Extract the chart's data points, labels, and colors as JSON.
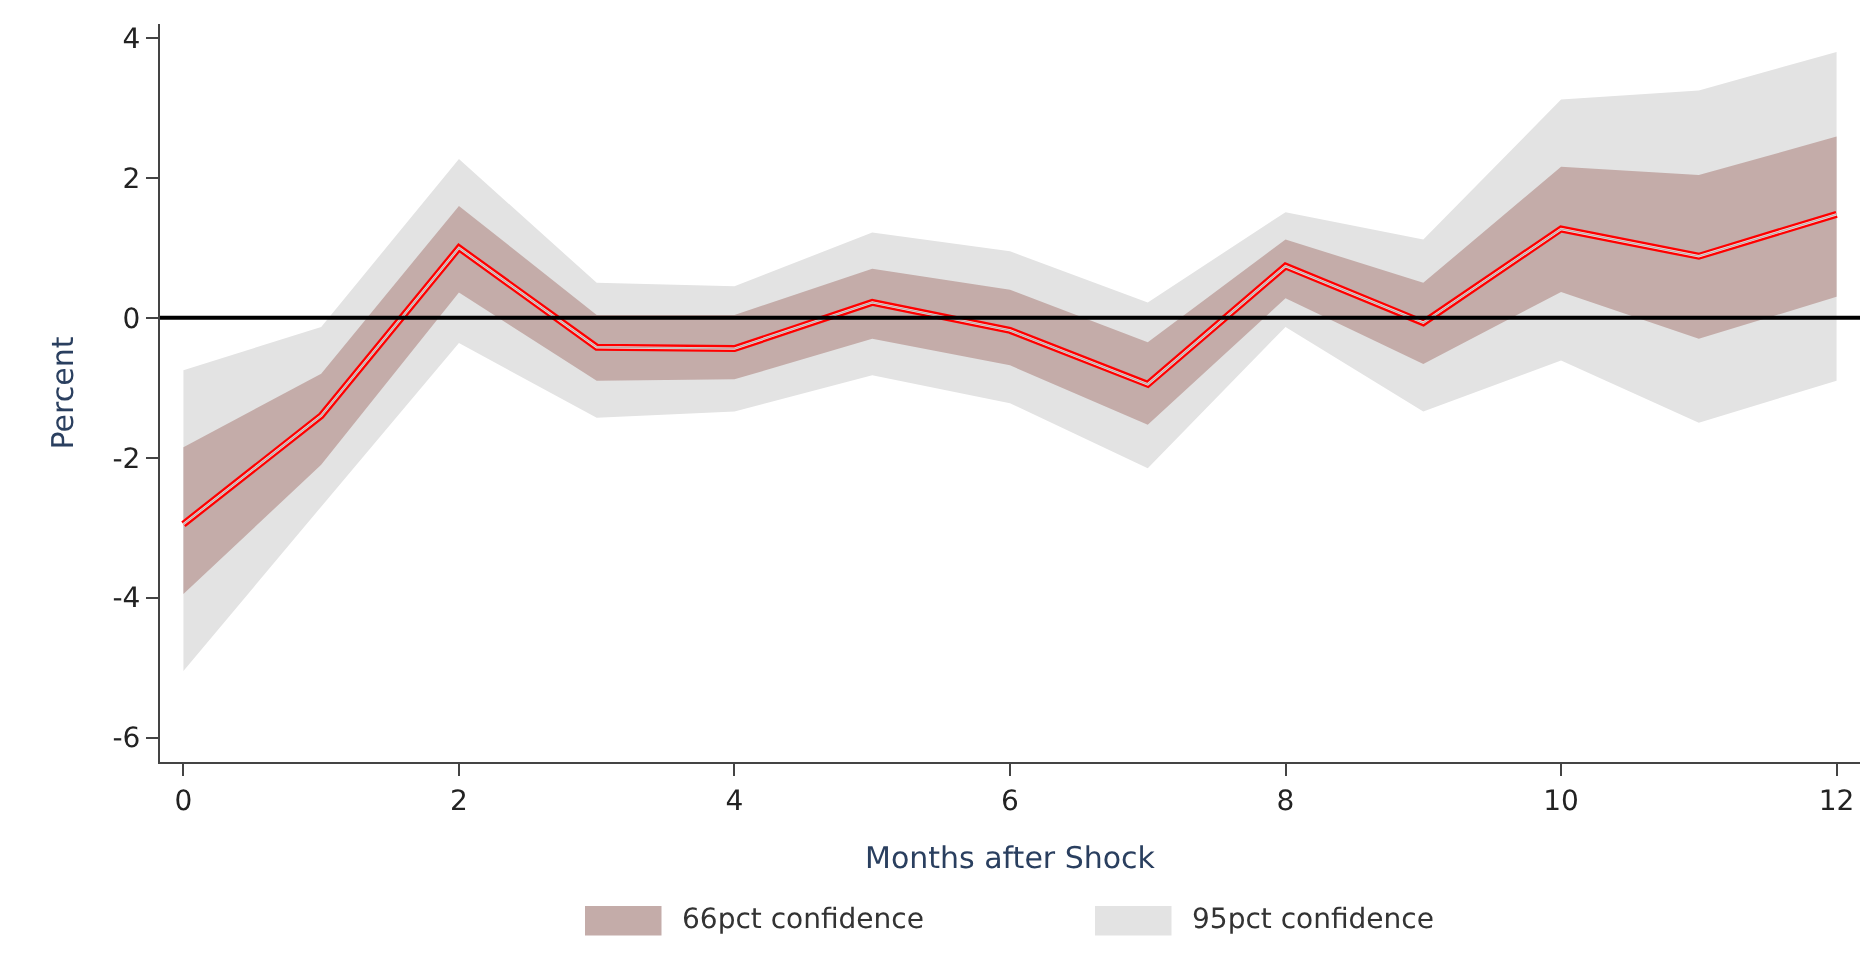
{
  "chart_data": {
    "type": "line",
    "xlabel": "Months after Shock",
    "ylabel": "Percent",
    "x": [
      0,
      1,
      2,
      3,
      4,
      5,
      6,
      7,
      8,
      9,
      10,
      11,
      12
    ],
    "series": [
      {
        "type": "line",
        "name": "95pct confidence",
        "color": "#e3e3e3",
        "values": [
          -2.95,
          -1.4,
          1.0,
          -0.42,
          -0.44,
          0.22,
          -0.18,
          -0.95,
          0.74,
          -0.07,
          1.27,
          0.88,
          1.48
        ],
        "lower": [
          -5.05,
          -2.7,
          -0.36,
          -1.43,
          -1.34,
          -0.82,
          -1.22,
          -2.15,
          -0.13,
          -1.34,
          -0.61,
          -1.5,
          -0.9
        ],
        "upper": [
          -0.75,
          -0.13,
          2.27,
          0.5,
          0.45,
          1.22,
          0.95,
          0.22,
          1.51,
          1.12,
          3.12,
          3.25,
          3.8
        ]
      },
      {
        "type": "line",
        "name": "66pct confidence",
        "color": "#c4aca9",
        "values": [
          -2.95,
          -1.4,
          1.0,
          -0.42,
          -0.44,
          0.22,
          -0.18,
          -0.95,
          0.74,
          -0.07,
          1.27,
          0.88,
          1.48
        ],
        "lower": [
          -3.95,
          -2.1,
          0.36,
          -0.9,
          -0.88,
          -0.3,
          -0.68,
          -1.53,
          0.28,
          -0.66,
          0.37,
          -0.3,
          0.3
        ],
        "upper": [
          -1.85,
          -0.8,
          1.6,
          0.04,
          0.04,
          0.7,
          0.4,
          -0.35,
          1.12,
          0.5,
          2.16,
          2.04,
          2.59
        ]
      },
      {
        "color": "#ff0000",
        "values": [
          -2.95,
          -1.4,
          1.0,
          -0.42,
          -0.44,
          0.22,
          -0.18,
          -0.95,
          0.74,
          -0.07,
          1.27,
          0.88,
          1.48
        ]
      }
    ],
    "ref_lines": [
      {
        "axis": "y",
        "value": 0,
        "color": "#000000"
      }
    ],
    "xlim": [
      -0.17,
      12.17
    ],
    "xticks": [
      0,
      2,
      4,
      6,
      8,
      10,
      12
    ],
    "ylim": [
      -6.35,
      4.2
    ],
    "yticks": [
      -6,
      -4,
      -2,
      0,
      2,
      4
    ],
    "legend": "bottom",
    "marker": "none",
    "line_style": "solid"
  }
}
